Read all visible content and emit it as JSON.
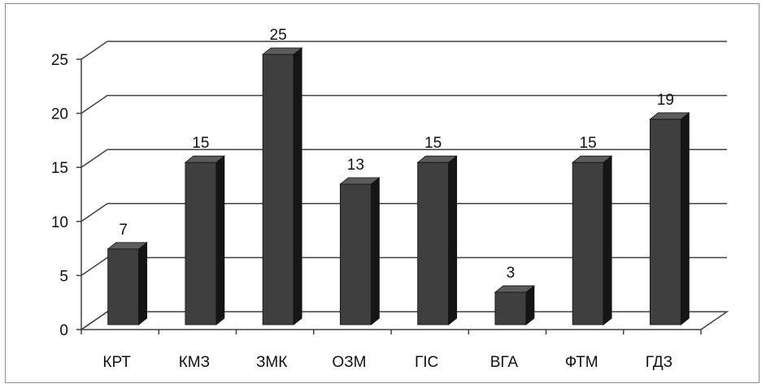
{
  "chart_data": {
    "type": "bar",
    "style": "3d-column",
    "categories": [
      "КРТ",
      "КМЗ",
      "ЗМК",
      "ОЗМ",
      "ГІС",
      "ВГА",
      "ФТМ",
      "ГДЗ"
    ],
    "values": [
      7,
      15,
      25,
      13,
      15,
      3,
      15,
      19
    ],
    "data_labels": [
      "7",
      "15",
      "25",
      "13",
      "15",
      "3",
      "15",
      "19"
    ],
    "yticks": [
      "0",
      "5",
      "10",
      "15",
      "20",
      "25"
    ],
    "ylim": [
      0,
      25
    ],
    "grid": true,
    "legend": "none",
    "bar_color": "#3f3f3f",
    "bar_side_color": "#151515",
    "bar_top_color": "#5c5c5c",
    "grid_color": "#404040"
  }
}
